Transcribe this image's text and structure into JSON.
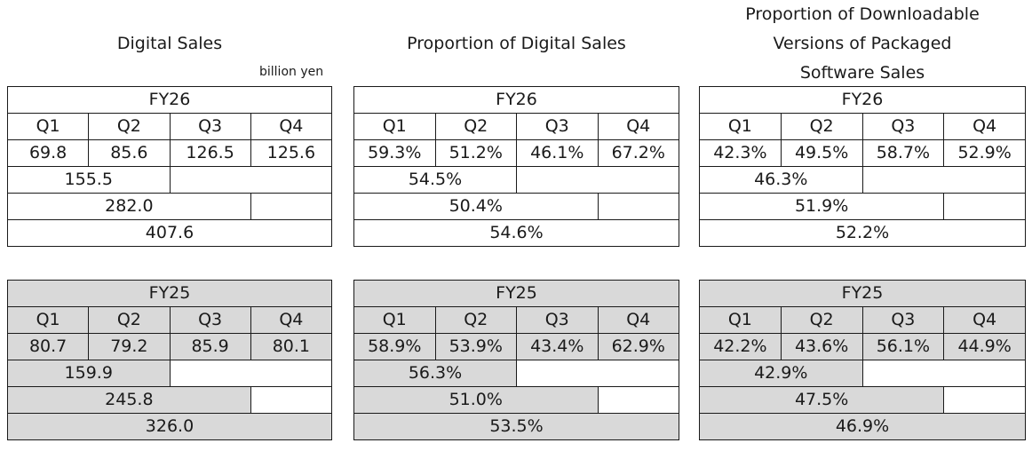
{
  "panels": [
    {
      "title_lines": [
        "Digital Sales"
      ],
      "unit": "billion yen",
      "fy26": {
        "year": "FY26",
        "quarters": [
          "Q1",
          "Q2",
          "Q3",
          "Q4"
        ],
        "values": [
          "69.8",
          "85.6",
          "126.5",
          "125.6"
        ],
        "h1": "155.5",
        "q3ytd": "282.0",
        "fy": "407.6"
      },
      "fy25": {
        "year": "FY25",
        "quarters": [
          "Q1",
          "Q2",
          "Q3",
          "Q4"
        ],
        "values": [
          "80.7",
          "79.2",
          "85.9",
          "80.1"
        ],
        "h1": "159.9",
        "q3ytd": "245.8",
        "fy": "326.0"
      }
    },
    {
      "title_lines": [
        "Proportion of Digital Sales"
      ],
      "unit": "",
      "fy26": {
        "year": "FY26",
        "quarters": [
          "Q1",
          "Q2",
          "Q3",
          "Q4"
        ],
        "values": [
          "59.3%",
          "51.2%",
          "46.1%",
          "67.2%"
        ],
        "h1": "54.5%",
        "q3ytd": "50.4%",
        "fy": "54.6%"
      },
      "fy25": {
        "year": "FY25",
        "quarters": [
          "Q1",
          "Q2",
          "Q3",
          "Q4"
        ],
        "values": [
          "58.9%",
          "53.9%",
          "43.4%",
          "62.9%"
        ],
        "h1": "56.3%",
        "q3ytd": "51.0%",
        "fy": "53.5%"
      }
    },
    {
      "title_lines": [
        "Proportion of Downloadable",
        "Versions of Packaged",
        "Software Sales"
      ],
      "unit": "",
      "fy26": {
        "year": "FY26",
        "quarters": [
          "Q1",
          "Q2",
          "Q3",
          "Q4"
        ],
        "values": [
          "42.3%",
          "49.5%",
          "58.7%",
          "52.9%"
        ],
        "h1": "46.3%",
        "q3ytd": "51.9%",
        "fy": "52.2%"
      },
      "fy25": {
        "year": "FY25",
        "quarters": [
          "Q1",
          "Q2",
          "Q3",
          "Q4"
        ],
        "values": [
          "42.2%",
          "43.6%",
          "56.1%",
          "44.9%"
        ],
        "h1": "42.9%",
        "q3ytd": "47.5%",
        "fy": "46.9%"
      }
    }
  ]
}
